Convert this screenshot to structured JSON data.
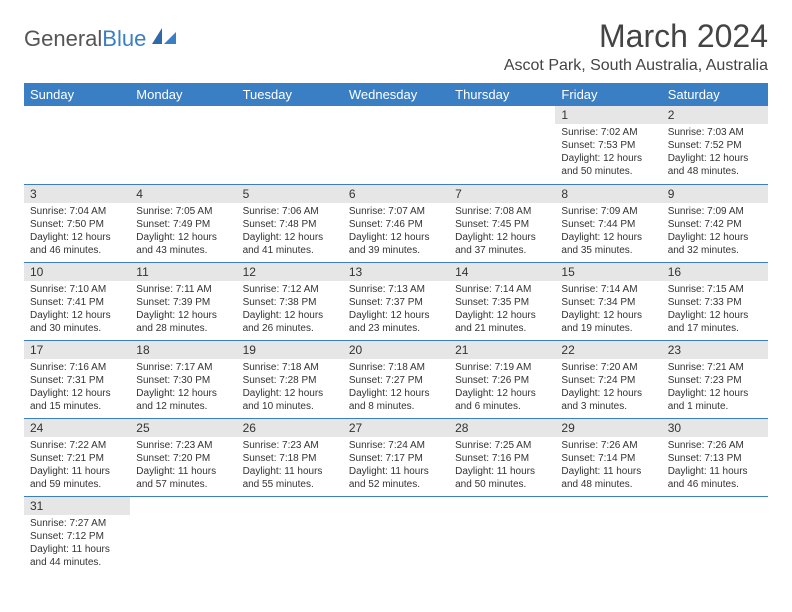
{
  "logo": {
    "text_gray": "General",
    "text_blue": "Blue"
  },
  "title": "March 2024",
  "location": "Ascot Park, South Australia, Australia",
  "colors": {
    "header_bg": "#3a7fc4",
    "header_text": "#ffffff",
    "daynum_bg": "#e6e6e6",
    "border": "#3a7fc4",
    "text": "#333333"
  },
  "weekdays": [
    "Sunday",
    "Monday",
    "Tuesday",
    "Wednesday",
    "Thursday",
    "Friday",
    "Saturday"
  ],
  "cells": [
    {
      "n": "",
      "sr": "",
      "ss": "",
      "dl": ""
    },
    {
      "n": "",
      "sr": "",
      "ss": "",
      "dl": ""
    },
    {
      "n": "",
      "sr": "",
      "ss": "",
      "dl": ""
    },
    {
      "n": "",
      "sr": "",
      "ss": "",
      "dl": ""
    },
    {
      "n": "",
      "sr": "",
      "ss": "",
      "dl": ""
    },
    {
      "n": "1",
      "sr": "Sunrise: 7:02 AM",
      "ss": "Sunset: 7:53 PM",
      "dl": "Daylight: 12 hours and 50 minutes."
    },
    {
      "n": "2",
      "sr": "Sunrise: 7:03 AM",
      "ss": "Sunset: 7:52 PM",
      "dl": "Daylight: 12 hours and 48 minutes."
    },
    {
      "n": "3",
      "sr": "Sunrise: 7:04 AM",
      "ss": "Sunset: 7:50 PM",
      "dl": "Daylight: 12 hours and 46 minutes."
    },
    {
      "n": "4",
      "sr": "Sunrise: 7:05 AM",
      "ss": "Sunset: 7:49 PM",
      "dl": "Daylight: 12 hours and 43 minutes."
    },
    {
      "n": "5",
      "sr": "Sunrise: 7:06 AM",
      "ss": "Sunset: 7:48 PM",
      "dl": "Daylight: 12 hours and 41 minutes."
    },
    {
      "n": "6",
      "sr": "Sunrise: 7:07 AM",
      "ss": "Sunset: 7:46 PM",
      "dl": "Daylight: 12 hours and 39 minutes."
    },
    {
      "n": "7",
      "sr": "Sunrise: 7:08 AM",
      "ss": "Sunset: 7:45 PM",
      "dl": "Daylight: 12 hours and 37 minutes."
    },
    {
      "n": "8",
      "sr": "Sunrise: 7:09 AM",
      "ss": "Sunset: 7:44 PM",
      "dl": "Daylight: 12 hours and 35 minutes."
    },
    {
      "n": "9",
      "sr": "Sunrise: 7:09 AM",
      "ss": "Sunset: 7:42 PM",
      "dl": "Daylight: 12 hours and 32 minutes."
    },
    {
      "n": "10",
      "sr": "Sunrise: 7:10 AM",
      "ss": "Sunset: 7:41 PM",
      "dl": "Daylight: 12 hours and 30 minutes."
    },
    {
      "n": "11",
      "sr": "Sunrise: 7:11 AM",
      "ss": "Sunset: 7:39 PM",
      "dl": "Daylight: 12 hours and 28 minutes."
    },
    {
      "n": "12",
      "sr": "Sunrise: 7:12 AM",
      "ss": "Sunset: 7:38 PM",
      "dl": "Daylight: 12 hours and 26 minutes."
    },
    {
      "n": "13",
      "sr": "Sunrise: 7:13 AM",
      "ss": "Sunset: 7:37 PM",
      "dl": "Daylight: 12 hours and 23 minutes."
    },
    {
      "n": "14",
      "sr": "Sunrise: 7:14 AM",
      "ss": "Sunset: 7:35 PM",
      "dl": "Daylight: 12 hours and 21 minutes."
    },
    {
      "n": "15",
      "sr": "Sunrise: 7:14 AM",
      "ss": "Sunset: 7:34 PM",
      "dl": "Daylight: 12 hours and 19 minutes."
    },
    {
      "n": "16",
      "sr": "Sunrise: 7:15 AM",
      "ss": "Sunset: 7:33 PM",
      "dl": "Daylight: 12 hours and 17 minutes."
    },
    {
      "n": "17",
      "sr": "Sunrise: 7:16 AM",
      "ss": "Sunset: 7:31 PM",
      "dl": "Daylight: 12 hours and 15 minutes."
    },
    {
      "n": "18",
      "sr": "Sunrise: 7:17 AM",
      "ss": "Sunset: 7:30 PM",
      "dl": "Daylight: 12 hours and 12 minutes."
    },
    {
      "n": "19",
      "sr": "Sunrise: 7:18 AM",
      "ss": "Sunset: 7:28 PM",
      "dl": "Daylight: 12 hours and 10 minutes."
    },
    {
      "n": "20",
      "sr": "Sunrise: 7:18 AM",
      "ss": "Sunset: 7:27 PM",
      "dl": "Daylight: 12 hours and 8 minutes."
    },
    {
      "n": "21",
      "sr": "Sunrise: 7:19 AM",
      "ss": "Sunset: 7:26 PM",
      "dl": "Daylight: 12 hours and 6 minutes."
    },
    {
      "n": "22",
      "sr": "Sunrise: 7:20 AM",
      "ss": "Sunset: 7:24 PM",
      "dl": "Daylight: 12 hours and 3 minutes."
    },
    {
      "n": "23",
      "sr": "Sunrise: 7:21 AM",
      "ss": "Sunset: 7:23 PM",
      "dl": "Daylight: 12 hours and 1 minute."
    },
    {
      "n": "24",
      "sr": "Sunrise: 7:22 AM",
      "ss": "Sunset: 7:21 PM",
      "dl": "Daylight: 11 hours and 59 minutes."
    },
    {
      "n": "25",
      "sr": "Sunrise: 7:23 AM",
      "ss": "Sunset: 7:20 PM",
      "dl": "Daylight: 11 hours and 57 minutes."
    },
    {
      "n": "26",
      "sr": "Sunrise: 7:23 AM",
      "ss": "Sunset: 7:18 PM",
      "dl": "Daylight: 11 hours and 55 minutes."
    },
    {
      "n": "27",
      "sr": "Sunrise: 7:24 AM",
      "ss": "Sunset: 7:17 PM",
      "dl": "Daylight: 11 hours and 52 minutes."
    },
    {
      "n": "28",
      "sr": "Sunrise: 7:25 AM",
      "ss": "Sunset: 7:16 PM",
      "dl": "Daylight: 11 hours and 50 minutes."
    },
    {
      "n": "29",
      "sr": "Sunrise: 7:26 AM",
      "ss": "Sunset: 7:14 PM",
      "dl": "Daylight: 11 hours and 48 minutes."
    },
    {
      "n": "30",
      "sr": "Sunrise: 7:26 AM",
      "ss": "Sunset: 7:13 PM",
      "dl": "Daylight: 11 hours and 46 minutes."
    },
    {
      "n": "31",
      "sr": "Sunrise: 7:27 AM",
      "ss": "Sunset: 7:12 PM",
      "dl": "Daylight: 11 hours and 44 minutes."
    },
    {
      "n": "",
      "sr": "",
      "ss": "",
      "dl": ""
    },
    {
      "n": "",
      "sr": "",
      "ss": "",
      "dl": ""
    },
    {
      "n": "",
      "sr": "",
      "ss": "",
      "dl": ""
    },
    {
      "n": "",
      "sr": "",
      "ss": "",
      "dl": ""
    },
    {
      "n": "",
      "sr": "",
      "ss": "",
      "dl": ""
    },
    {
      "n": "",
      "sr": "",
      "ss": "",
      "dl": ""
    }
  ]
}
